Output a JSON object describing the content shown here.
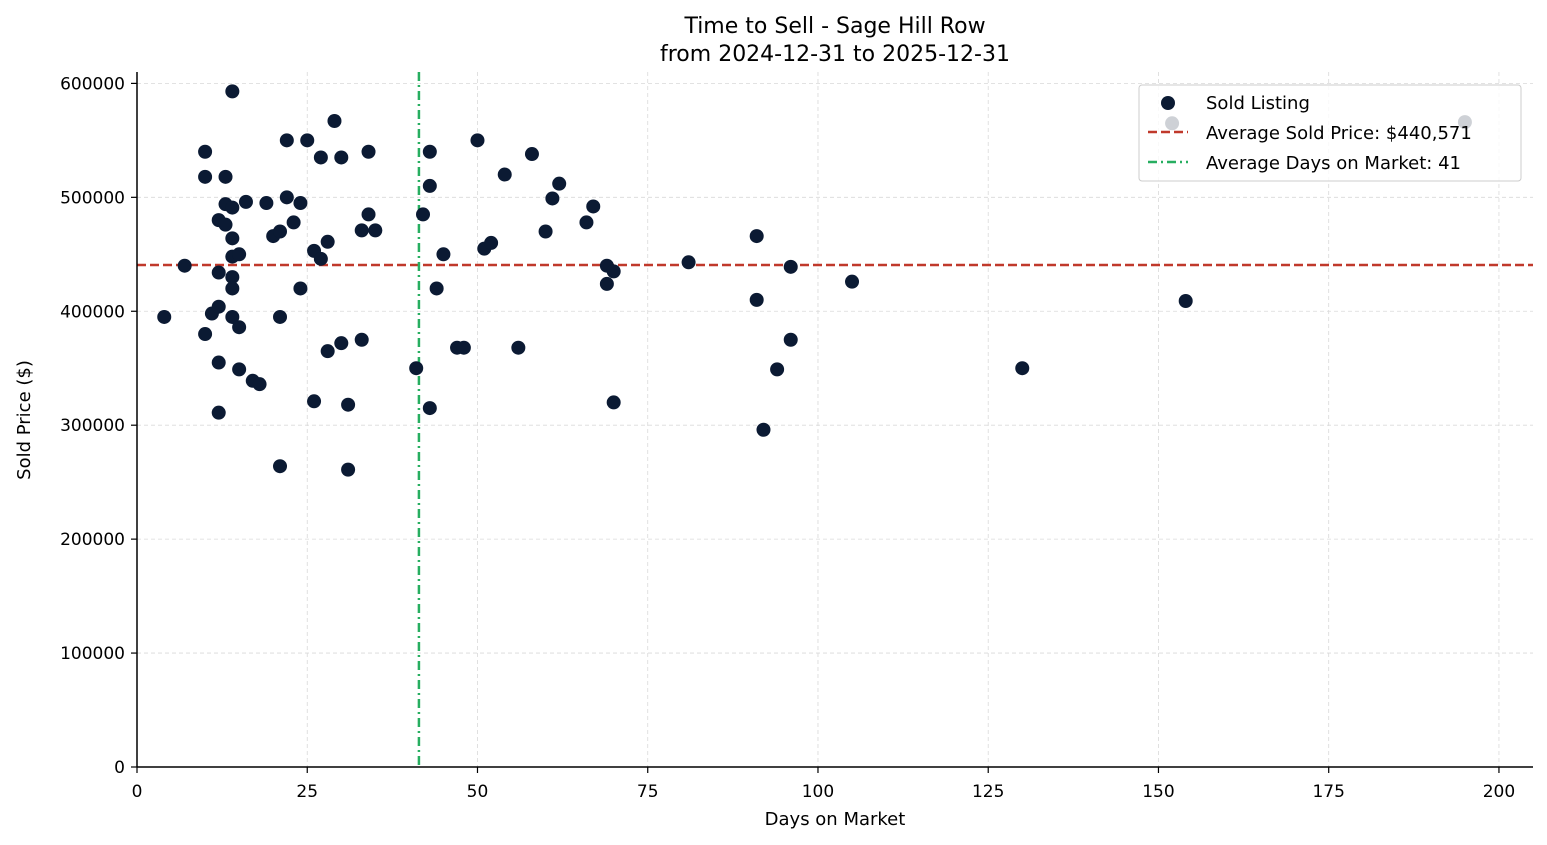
{
  "chart_data": {
    "type": "scatter",
    "title": "Time to Sell - Sage Hill Row",
    "subtitle": "from 2024-12-31 to 2025-12-31",
    "xlabel": "Days on Market",
    "ylabel": "Sold Price ($)",
    "xlim": [
      0,
      205
    ],
    "ylim": [
      0,
      610000
    ],
    "xticks": [
      0,
      25,
      50,
      75,
      100,
      125,
      150,
      175,
      200
    ],
    "yticks": [
      0,
      100000,
      200000,
      300000,
      400000,
      500000,
      600000
    ],
    "grid": true,
    "legend_position": "top-right",
    "legend": {
      "points": "Sold Listing",
      "avg_price": "Average Sold Price: $440,571",
      "avg_days": "Average Days on Market: 41"
    },
    "avg_price": 440571,
    "avg_days": 41.4,
    "colors": {
      "points": "#0b1a33",
      "avg_price": "#c0392b",
      "avg_days": "#27ae60",
      "grid": "#d9d9d9"
    },
    "series": [
      {
        "name": "Sold Listing",
        "points": [
          [
            4,
            395000
          ],
          [
            7,
            440000
          ],
          [
            10,
            540000
          ],
          [
            10,
            518000
          ],
          [
            10,
            380000
          ],
          [
            11,
            398000
          ],
          [
            12,
            480000
          ],
          [
            12,
            434000
          ],
          [
            12,
            404000
          ],
          [
            12,
            355000
          ],
          [
            12,
            311000
          ],
          [
            13,
            518000
          ],
          [
            13,
            494000
          ],
          [
            13,
            476000
          ],
          [
            14,
            593000
          ],
          [
            14,
            491000
          ],
          [
            14,
            464000
          ],
          [
            14,
            448000
          ],
          [
            14,
            430000
          ],
          [
            14,
            420000
          ],
          [
            14,
            395000
          ],
          [
            15,
            450000
          ],
          [
            15,
            386000
          ],
          [
            15,
            349000
          ],
          [
            16,
            496000
          ],
          [
            17,
            339000
          ],
          [
            18,
            336000
          ],
          [
            19,
            495000
          ],
          [
            20,
            466000
          ],
          [
            21,
            470000
          ],
          [
            21,
            395000
          ],
          [
            21,
            264000
          ],
          [
            22,
            550000
          ],
          [
            22,
            500000
          ],
          [
            23,
            478000
          ],
          [
            24,
            495000
          ],
          [
            24,
            420000
          ],
          [
            25,
            550000
          ],
          [
            26,
            453000
          ],
          [
            26,
            321000
          ],
          [
            27,
            535000
          ],
          [
            27,
            446000
          ],
          [
            28,
            461000
          ],
          [
            28,
            365000
          ],
          [
            29,
            567000
          ],
          [
            30,
            535000
          ],
          [
            30,
            372000
          ],
          [
            31,
            318000
          ],
          [
            31,
            261000
          ],
          [
            33,
            471000
          ],
          [
            33,
            375000
          ],
          [
            34,
            540000
          ],
          [
            34,
            485000
          ],
          [
            35,
            471000
          ],
          [
            41,
            350000
          ],
          [
            42,
            485000
          ],
          [
            43,
            540000
          ],
          [
            43,
            510000
          ],
          [
            43,
            315000
          ],
          [
            44,
            420000
          ],
          [
            45,
            450000
          ],
          [
            47,
            368000
          ],
          [
            48,
            368000
          ],
          [
            50,
            550000
          ],
          [
            51,
            455000
          ],
          [
            52,
            460000
          ],
          [
            54,
            520000
          ],
          [
            56,
            368000
          ],
          [
            58,
            538000
          ],
          [
            60,
            470000
          ],
          [
            61,
            499000
          ],
          [
            62,
            512000
          ],
          [
            66,
            478000
          ],
          [
            67,
            492000
          ],
          [
            69,
            440000
          ],
          [
            69,
            424000
          ],
          [
            70,
            435000
          ],
          [
            70,
            320000
          ],
          [
            81,
            443000
          ],
          [
            91,
            466000
          ],
          [
            91,
            410000
          ],
          [
            92,
            296000
          ],
          [
            94,
            349000
          ],
          [
            96,
            439000
          ],
          [
            96,
            375000
          ],
          [
            105,
            426000
          ],
          [
            130,
            350000
          ],
          [
            152,
            565000
          ],
          [
            154,
            409000
          ],
          [
            195,
            566000
          ]
        ]
      }
    ]
  }
}
